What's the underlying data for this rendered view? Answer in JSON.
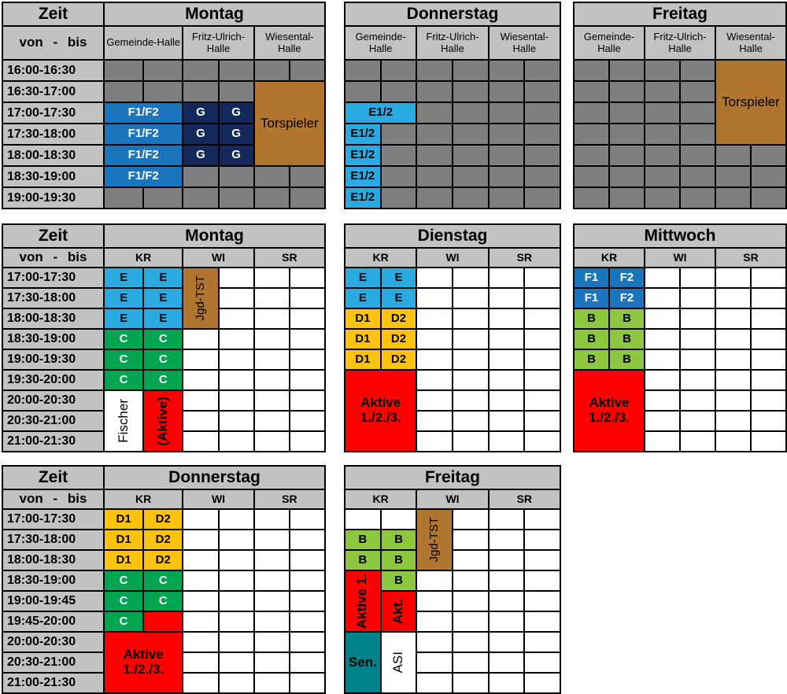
{
  "palette": {
    "grid": "#000000",
    "header_bg": "#C2C2C2",
    "unavailable": "#7F7F7F",
    "free": "#FFFFFF",
    "cyan": "#29ABE2",
    "blue": "#1B75BC",
    "navy": "#13295B",
    "green": "#00A551",
    "light_green": "#8DC63F",
    "yellow": "#FFC20E",
    "red": "#FE0000",
    "brown": "#B0752E",
    "teal": "#00828A",
    "text_dark": "#000000",
    "text_light": "#FFFFFF"
  },
  "shared": {
    "zeit_label": "Zeit",
    "von_bis_label": "von - bis"
  },
  "tables": [
    {
      "title": "Montag",
      "columns": [
        "Gemeinde-Halle",
        "Fritz-Ulrich-Halle",
        "Wiesental-Halle"
      ],
      "times": [
        "16:00-16:30",
        "16:30-17:00",
        "17:00-17:30",
        "17:30-18:00",
        "18:00-18:30",
        "18:30-19:00",
        "19:00-19:30"
      ],
      "default": "unavailable",
      "blocks": [
        {
          "label": "F1/F2",
          "r": 3,
          "c": 1,
          "cs": 2,
          "bg": "blue",
          "fg": "l"
        },
        {
          "label": "F1/F2",
          "r": 4,
          "c": 1,
          "cs": 2,
          "bg": "blue",
          "fg": "l"
        },
        {
          "label": "F1/F2",
          "r": 5,
          "c": 1,
          "cs": 2,
          "bg": "blue",
          "fg": "l"
        },
        {
          "label": "F1/F2",
          "r": 6,
          "c": 1,
          "cs": 2,
          "bg": "blue",
          "fg": "l"
        },
        {
          "label": "G",
          "r": 3,
          "c": 3,
          "bg": "navy",
          "fg": "l"
        },
        {
          "label": "G",
          "r": 3,
          "c": 4,
          "bg": "navy",
          "fg": "l"
        },
        {
          "label": "G",
          "r": 4,
          "c": 3,
          "bg": "navy",
          "fg": "l"
        },
        {
          "label": "G",
          "r": 4,
          "c": 4,
          "bg": "navy",
          "fg": "l"
        },
        {
          "label": "G",
          "r": 5,
          "c": 3,
          "bg": "navy",
          "fg": "l"
        },
        {
          "label": "G",
          "r": 5,
          "c": 4,
          "bg": "navy",
          "fg": "l"
        },
        {
          "label": "Torspieler",
          "r": 2,
          "c": 5,
          "rs": 4,
          "cs": 2,
          "bg": "brown",
          "fg": "d",
          "b": false,
          "big": true
        }
      ]
    },
    {
      "title": "Donnerstag",
      "columns": [
        "Gemeinde-Halle",
        "Fritz-Ulrich-Halle",
        "Wiesental-Halle"
      ],
      "default": "unavailable",
      "blocks": [
        {
          "label": "E1/2",
          "r": 3,
          "c": 1,
          "cs": 2,
          "bg": "cyan",
          "fg": "d"
        },
        {
          "label": "E1/2",
          "r": 4,
          "c": 1,
          "bg": "cyan",
          "fg": "d"
        },
        {
          "label": "E1/2",
          "r": 5,
          "c": 1,
          "bg": "cyan",
          "fg": "d"
        },
        {
          "label": "E1/2",
          "r": 6,
          "c": 1,
          "bg": "cyan",
          "fg": "d"
        },
        {
          "label": "E1/2",
          "r": 7,
          "c": 1,
          "bg": "cyan",
          "fg": "d"
        }
      ]
    },
    {
      "title": "Freitag",
      "columns": [
        "Gemeinde-Halle",
        "Fritz-Ulrich-Halle",
        "Wiesental-Halle"
      ],
      "default": "unavailable",
      "blocks": [
        {
          "label": "Torspieler",
          "r": 1,
          "c": 5,
          "rs": 4,
          "cs": 2,
          "bg": "brown",
          "fg": "d",
          "b": false,
          "big": true
        }
      ]
    },
    {
      "title": "Montag",
      "columns": [
        "KR",
        "WI",
        "SR"
      ],
      "times": [
        "17:00-17:30",
        "17:30-18:00",
        "18:00-18:30",
        "18:30-19:00",
        "19:00-19:30",
        "19:30-20:00",
        "20:00-20:30",
        "20:30-21:00",
        "21:00-21:30"
      ],
      "default": "free",
      "blocks": [
        {
          "label": "E",
          "r": 1,
          "c": 1,
          "bg": "cyan",
          "fg": "d"
        },
        {
          "label": "E",
          "r": 1,
          "c": 2,
          "bg": "cyan",
          "fg": "d"
        },
        {
          "label": "E",
          "r": 2,
          "c": 1,
          "bg": "cyan",
          "fg": "d"
        },
        {
          "label": "E",
          "r": 2,
          "c": 2,
          "bg": "cyan",
          "fg": "d"
        },
        {
          "label": "E",
          "r": 3,
          "c": 1,
          "bg": "cyan",
          "fg": "d"
        },
        {
          "label": "E",
          "r": 3,
          "c": 2,
          "bg": "cyan",
          "fg": "d"
        },
        {
          "label": "Jgd-TST",
          "r": 1,
          "c": 3,
          "rs": 3,
          "bg": "brown",
          "fg": "d",
          "b": false,
          "v": true
        },
        {
          "label": "C",
          "r": 4,
          "c": 1,
          "bg": "green",
          "fg": "l"
        },
        {
          "label": "C",
          "r": 4,
          "c": 2,
          "bg": "green",
          "fg": "l"
        },
        {
          "label": "C",
          "r": 5,
          "c": 1,
          "bg": "green",
          "fg": "l"
        },
        {
          "label": "C",
          "r": 5,
          "c": 2,
          "bg": "green",
          "fg": "l"
        },
        {
          "label": "C",
          "r": 6,
          "c": 1,
          "bg": "green",
          "fg": "l"
        },
        {
          "label": "C",
          "r": 6,
          "c": 2,
          "bg": "green",
          "fg": "l"
        },
        {
          "label": "Fischer",
          "r": 7,
          "c": 1,
          "rs": 3,
          "bg": "free",
          "fg": "d",
          "b": false,
          "v": true,
          "big": true
        },
        {
          "label": "(Aktive)",
          "r": 7,
          "c": 2,
          "rs": 3,
          "bg": "red",
          "fg": "d",
          "v": true,
          "big": true
        }
      ]
    },
    {
      "title": "Dienstag",
      "columns": [
        "KR",
        "WI",
        "SR"
      ],
      "default": "free",
      "blocks": [
        {
          "label": "E",
          "r": 1,
          "c": 1,
          "bg": "cyan",
          "fg": "d"
        },
        {
          "label": "E",
          "r": 1,
          "c": 2,
          "bg": "cyan",
          "fg": "d"
        },
        {
          "label": "E",
          "r": 2,
          "c": 1,
          "bg": "cyan",
          "fg": "d"
        },
        {
          "label": "E",
          "r": 2,
          "c": 2,
          "bg": "cyan",
          "fg": "d"
        },
        {
          "label": "D1",
          "r": 3,
          "c": 1,
          "bg": "yellow",
          "fg": "d"
        },
        {
          "label": "D2",
          "r": 3,
          "c": 2,
          "bg": "yellow",
          "fg": "d"
        },
        {
          "label": "D1",
          "r": 4,
          "c": 1,
          "bg": "yellow",
          "fg": "d"
        },
        {
          "label": "D2",
          "r": 4,
          "c": 2,
          "bg": "yellow",
          "fg": "d"
        },
        {
          "label": "D1",
          "r": 5,
          "c": 1,
          "bg": "yellow",
          "fg": "d"
        },
        {
          "label": "D2",
          "r": 5,
          "c": 2,
          "bg": "yellow",
          "fg": "d"
        },
        {
          "label": "Aktive\n1./2./3.",
          "r": 6,
          "c": 1,
          "rs": 4,
          "cs": 2,
          "bg": "red",
          "fg": "d",
          "big": true
        }
      ]
    },
    {
      "title": "Mittwoch",
      "columns": [
        "KR",
        "WI",
        "SR"
      ],
      "default": "free",
      "blocks": [
        {
          "label": "F1",
          "r": 1,
          "c": 1,
          "bg": "blue",
          "fg": "l"
        },
        {
          "label": "F2",
          "r": 1,
          "c": 2,
          "bg": "blue",
          "fg": "l"
        },
        {
          "label": "F1",
          "r": 2,
          "c": 1,
          "bg": "blue",
          "fg": "l"
        },
        {
          "label": "F2",
          "r": 2,
          "c": 2,
          "bg": "blue",
          "fg": "l"
        },
        {
          "label": "B",
          "r": 3,
          "c": 1,
          "bg": "light_green",
          "fg": "d"
        },
        {
          "label": "B",
          "r": 3,
          "c": 2,
          "bg": "light_green",
          "fg": "d"
        },
        {
          "label": "B",
          "r": 4,
          "c": 1,
          "bg": "light_green",
          "fg": "d"
        },
        {
          "label": "B",
          "r": 4,
          "c": 2,
          "bg": "light_green",
          "fg": "d"
        },
        {
          "label": "B",
          "r": 5,
          "c": 1,
          "bg": "light_green",
          "fg": "d"
        },
        {
          "label": "B",
          "r": 5,
          "c": 2,
          "bg": "light_green",
          "fg": "d"
        },
        {
          "label": "Aktive\n1./2./3.",
          "r": 6,
          "c": 1,
          "rs": 4,
          "cs": 2,
          "bg": "red",
          "fg": "d",
          "big": true
        }
      ]
    },
    {
      "title": "Donnerstag",
      "columns": [
        "KR",
        "WI",
        "SR"
      ],
      "times": [
        "17:00-17:30",
        "17:30-18:00",
        "18:00-18:30",
        "18:30-19:00",
        "19:00-19:45",
        "19:45-20:00",
        "20:00-20:30",
        "20:30-21:00",
        "21:00-21:30"
      ],
      "default": "free",
      "blocks": [
        {
          "label": "D1",
          "r": 1,
          "c": 1,
          "bg": "yellow",
          "fg": "d"
        },
        {
          "label": "D2",
          "r": 1,
          "c": 2,
          "bg": "yellow",
          "fg": "d"
        },
        {
          "label": "D1",
          "r": 2,
          "c": 1,
          "bg": "yellow",
          "fg": "d"
        },
        {
          "label": "D2",
          "r": 2,
          "c": 2,
          "bg": "yellow",
          "fg": "d"
        },
        {
          "label": "D1",
          "r": 3,
          "c": 1,
          "bg": "yellow",
          "fg": "d"
        },
        {
          "label": "D2",
          "r": 3,
          "c": 2,
          "bg": "yellow",
          "fg": "d"
        },
        {
          "label": "C",
          "r": 4,
          "c": 1,
          "bg": "green",
          "fg": "l"
        },
        {
          "label": "C",
          "r": 4,
          "c": 2,
          "bg": "green",
          "fg": "l"
        },
        {
          "label": "C",
          "r": 5,
          "c": 1,
          "bg": "green",
          "fg": "l"
        },
        {
          "label": "C",
          "r": 5,
          "c": 2,
          "bg": "green",
          "fg": "l"
        },
        {
          "label": "C",
          "r": 6,
          "c": 1,
          "bg": "green",
          "fg": "l"
        },
        {
          "label": "",
          "r": 6,
          "c": 2,
          "bg": "red",
          "fg": "d"
        },
        {
          "label": "Aktive\n1./2./3.",
          "r": 7,
          "c": 1,
          "rs": 3,
          "cs": 2,
          "bg": "red",
          "fg": "d",
          "big": true
        }
      ]
    },
    {
      "title": "Freitag",
      "columns": [
        "KR",
        "WI",
        "SR"
      ],
      "default": "free",
      "blocks": [
        {
          "label": "Jgd-TST",
          "r": 1,
          "c": 3,
          "rs": 3,
          "bg": "brown",
          "fg": "d",
          "b": false,
          "v": true
        },
        {
          "label": "B",
          "r": 2,
          "c": 1,
          "bg": "light_green",
          "fg": "d"
        },
        {
          "label": "B",
          "r": 2,
          "c": 2,
          "bg": "light_green",
          "fg": "d"
        },
        {
          "label": "B",
          "r": 3,
          "c": 1,
          "bg": "light_green",
          "fg": "d"
        },
        {
          "label": "B",
          "r": 3,
          "c": 2,
          "bg": "light_green",
          "fg": "d"
        },
        {
          "label": "Aktive 1.",
          "r": 4,
          "c": 1,
          "rs": 3,
          "bg": "red",
          "fg": "d",
          "v": true,
          "big": true
        },
        {
          "label": "B",
          "r": 4,
          "c": 2,
          "bg": "light_green",
          "fg": "d"
        },
        {
          "label": "Akt.",
          "r": 5,
          "c": 2,
          "rs": 2,
          "bg": "red",
          "fg": "d",
          "v": true,
          "big": true
        },
        {
          "label": "Sen.",
          "r": 7,
          "c": 1,
          "rs": 3,
          "bg": "teal",
          "fg": "d",
          "big": true
        },
        {
          "label": "ASI",
          "r": 7,
          "c": 2,
          "rs": 3,
          "bg": "free",
          "fg": "d",
          "b": false,
          "v": true,
          "big": true
        }
      ]
    }
  ]
}
